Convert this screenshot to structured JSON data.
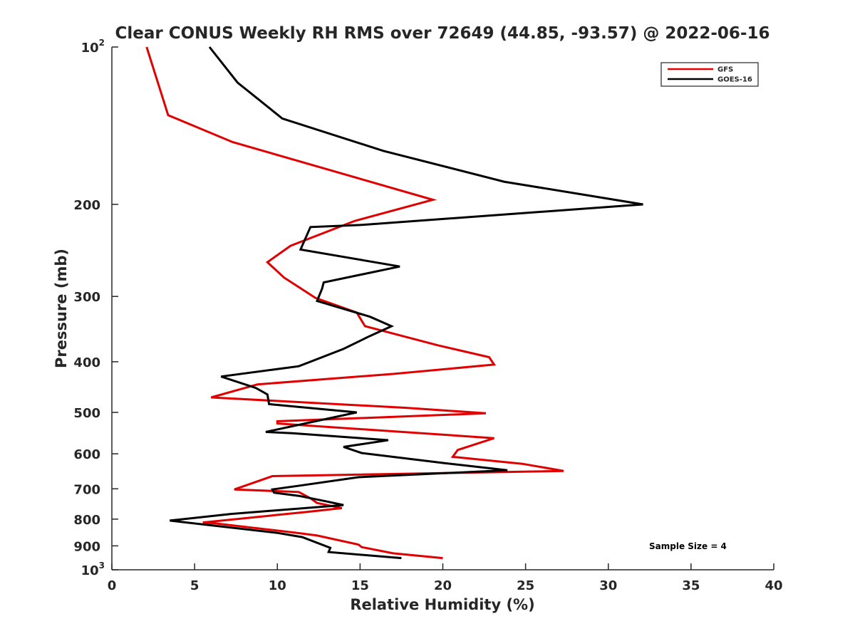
{
  "chart_data": {
    "type": "line",
    "title": "Clear CONUS Weekly RH RMS over 72649 (44.85, -93.57) @ 2022-06-16",
    "xlabel": "Relative Humidity (%)",
    "ylabel": "Pressure (mb)",
    "xlim": [
      0,
      40
    ],
    "ylim": [
      100,
      1000
    ],
    "y_scale": "log",
    "y_reversed": true,
    "x_ticks": [
      0,
      5,
      10,
      15,
      20,
      25,
      30,
      35,
      40
    ],
    "x_tick_labels": [
      "0",
      "5",
      "10",
      "15",
      "20",
      "25",
      "30",
      "35",
      "40"
    ],
    "y_ticks": [
      {
        "value": 100,
        "base": "10",
        "exp": "2"
      },
      {
        "value": 200,
        "label": "200"
      },
      {
        "value": 300,
        "label": "300"
      },
      {
        "value": 400,
        "label": "400"
      },
      {
        "value": 500,
        "label": "500"
      },
      {
        "value": 600,
        "label": "600"
      },
      {
        "value": 700,
        "label": "700"
      },
      {
        "value": 800,
        "label": "800"
      },
      {
        "value": 900,
        "label": "900"
      },
      {
        "value": 1000,
        "base": "10",
        "exp": "3"
      }
    ],
    "grid": false,
    "legend_position": "top-right",
    "annotation": "Sample Size = 4",
    "series": [
      {
        "name": "GFS",
        "color": "#e00000",
        "points": [
          [
            2.1,
            100
          ],
          [
            3.4,
            135
          ],
          [
            7.3,
            152
          ],
          [
            19.4,
            196
          ],
          [
            14.7,
            215
          ],
          [
            10.8,
            240
          ],
          [
            9.4,
            258
          ],
          [
            10.4,
            276
          ],
          [
            12.3,
            302
          ],
          [
            14.8,
            322
          ],
          [
            15.3,
            342
          ],
          [
            19.7,
            372
          ],
          [
            22.8,
            392
          ],
          [
            23.1,
            405
          ],
          [
            17.0,
            422
          ],
          [
            8.8,
            442
          ],
          [
            6.0,
            468
          ],
          [
            17.8,
            490
          ],
          [
            22.6,
            502
          ],
          [
            10.0,
            520
          ],
          [
            10.0,
            525
          ],
          [
            23.1,
            560
          ],
          [
            20.9,
            590
          ],
          [
            20.6,
            608
          ],
          [
            24.8,
            627
          ],
          [
            27.3,
            647
          ],
          [
            9.7,
            662
          ],
          [
            7.4,
            702
          ],
          [
            11.3,
            710
          ],
          [
            12.0,
            730
          ],
          [
            12.4,
            745
          ],
          [
            13.9,
            762
          ],
          [
            11.8,
            775
          ],
          [
            5.5,
            812
          ],
          [
            6.2,
            815
          ],
          [
            11.2,
            850
          ],
          [
            12.4,
            860
          ],
          [
            14.9,
            895
          ],
          [
            15.1,
            905
          ],
          [
            17.0,
            930
          ],
          [
            20.0,
            950
          ]
        ]
      },
      {
        "name": "GOES-16",
        "color": "#000000",
        "points": [
          [
            5.9,
            100
          ],
          [
            7.6,
            117
          ],
          [
            10.3,
            137
          ],
          [
            16.4,
            158
          ],
          [
            23.7,
            181
          ],
          [
            32.1,
            200
          ],
          [
            15.0,
            219
          ],
          [
            12.0,
            221
          ],
          [
            11.4,
            244
          ],
          [
            17.4,
            263
          ],
          [
            12.8,
            282
          ],
          [
            12.7,
            290
          ],
          [
            12.4,
            306
          ],
          [
            15.6,
            328
          ],
          [
            16.9,
            342
          ],
          [
            15.6,
            357
          ],
          [
            14.0,
            378
          ],
          [
            11.3,
            408
          ],
          [
            6.6,
            427
          ],
          [
            8.7,
            449
          ],
          [
            9.4,
            462
          ],
          [
            9.5,
            482
          ],
          [
            14.8,
            500
          ],
          [
            9.3,
            545
          ],
          [
            10.9,
            548
          ],
          [
            16.7,
            565
          ],
          [
            14.0,
            582
          ],
          [
            15.1,
            598
          ],
          [
            20.1,
            625
          ],
          [
            23.9,
            645
          ],
          [
            14.9,
            665
          ],
          [
            11.4,
            690
          ],
          [
            9.7,
            702
          ],
          [
            9.8,
            712
          ],
          [
            11.3,
            722
          ],
          [
            12.8,
            738
          ],
          [
            14.0,
            752
          ],
          [
            7.2,
            782
          ],
          [
            3.5,
            805
          ],
          [
            10.0,
            850
          ],
          [
            11.5,
            866
          ],
          [
            13.2,
            908
          ],
          [
            13.1,
            925
          ],
          [
            17.5,
            950
          ]
        ]
      }
    ]
  }
}
